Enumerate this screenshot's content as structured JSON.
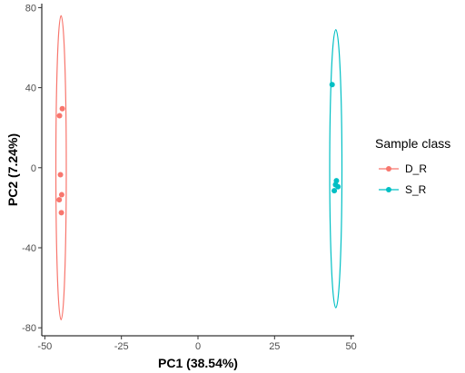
{
  "chart_data": {
    "type": "scatter",
    "xlabel": "PC1 (38.54%)",
    "ylabel": "PC2 (7.24%)",
    "xlim": [
      -51,
      51
    ],
    "ylim": [
      -84,
      82
    ],
    "x_ticks": [
      -50,
      -25,
      0,
      25,
      50
    ],
    "y_ticks": [
      -80,
      -40,
      0,
      40,
      80
    ],
    "x_tick_labels": [
      "-50",
      "-25",
      "0",
      "25",
      "50"
    ],
    "y_tick_labels": [
      "-80",
      "-40",
      "0",
      "40",
      "80"
    ],
    "grid": false,
    "legend": {
      "title": "Sample class",
      "position": "right"
    },
    "series": [
      {
        "name": "D_R",
        "color": "#F8766D",
        "points": [
          {
            "x": -44.3,
            "y": 29.5
          },
          {
            "x": -45.2,
            "y": 26.0
          },
          {
            "x": -44.9,
            "y": -3.5
          },
          {
            "x": -44.5,
            "y": -13.5
          },
          {
            "x": -45.3,
            "y": -16.0
          },
          {
            "x": -44.6,
            "y": -22.5
          }
        ],
        "ellipse": {
          "cx": -44.7,
          "cy": 0,
          "rx": 1.7,
          "ry": 76
        }
      },
      {
        "name": "S_R",
        "color": "#00BFC4",
        "points": [
          {
            "x": 43.8,
            "y": 41.5
          },
          {
            "x": 45.2,
            "y": -6.5
          },
          {
            "x": 44.9,
            "y": -8.5
          },
          {
            "x": 45.7,
            "y": -9.5
          },
          {
            "x": 44.5,
            "y": -11.5
          }
        ],
        "ellipse": {
          "cx": 45.0,
          "cy": -0.5,
          "rx": 2.0,
          "ry": 69.5
        }
      }
    ]
  }
}
